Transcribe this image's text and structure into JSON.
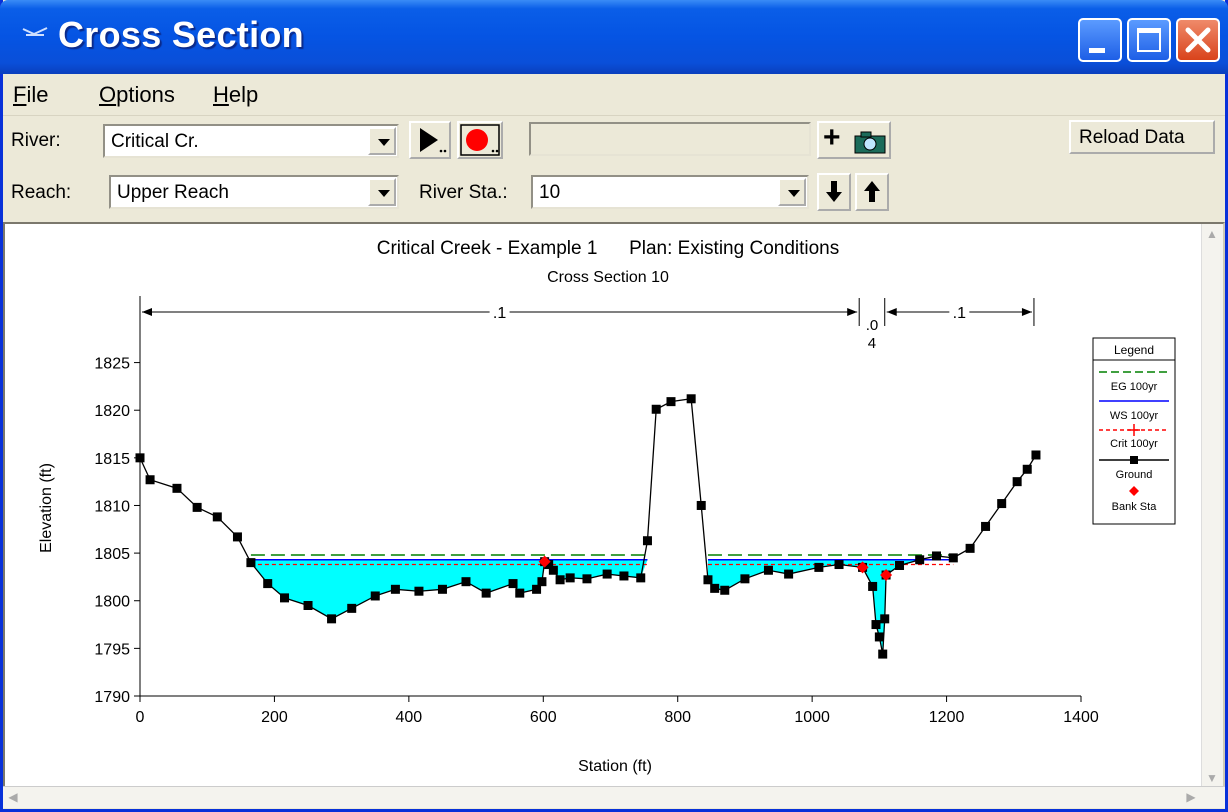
{
  "window": {
    "title": "Cross Section",
    "icon": "hec-ras-icon",
    "controls": [
      "minimize-icon",
      "maximize-icon",
      "close-icon"
    ]
  },
  "menu": {
    "file": "ile",
    "file_u": "F",
    "options": "ptions",
    "options_u": "O",
    "help": "elp",
    "help_u": "H"
  },
  "toolbar": {
    "river_label": "River:",
    "river_value": "Critical Cr.",
    "reach_label": "Reach:",
    "reach_value": "Upper Reach",
    "station_label": "River Sta.:",
    "station_value": "10",
    "play_icon": "play-icon",
    "record_icon": "record-icon",
    "add_label": "+",
    "camera_icon": "camera-icon",
    "down_icon": "arrow-down-icon",
    "up_icon": "arrow-up-icon",
    "reload_label": "Reload Data",
    "status_box": ""
  },
  "chart_data": {
    "type": "line",
    "title": "Critical Creek - Example 1      Plan: Existing Conditions",
    "subtitle": "Cross Section 10",
    "xlabel": "Station (ft)",
    "ylabel": "Elevation (ft)",
    "xlim": [
      0,
      1400
    ],
    "ylim": [
      1790,
      1828
    ],
    "xticks": [
      "0",
      "200",
      "400",
      "600",
      "800",
      "1000",
      "1200",
      "1400"
    ],
    "yticks": [
      "1790",
      "1795",
      "1800",
      "1805",
      "1810",
      "1815",
      "1820",
      "1825"
    ],
    "manning": [
      {
        "label": ".1",
        "from": 0,
        "to": 1070
      },
      {
        "label": ".0",
        "label2": "4",
        "from": 1070,
        "to": 1108
      },
      {
        "label": ".1",
        "from": 1108,
        "to": 1330
      }
    ],
    "legend": {
      "title": "Legend",
      "entries": [
        {
          "name": "EG 100yr",
          "color": "#008000",
          "style": "dash"
        },
        {
          "name": "WS 100yr",
          "color": "#0000ff",
          "style": "solid"
        },
        {
          "name": "Crit 100yr",
          "color": "#ff0000",
          "style": "dash-marker"
        },
        {
          "name": "Ground",
          "color": "#000000",
          "style": "solid-square"
        },
        {
          "name": "Bank Sta",
          "color": "#ff0000",
          "style": "diamond"
        }
      ]
    },
    "ground": [
      [
        0,
        1815
      ],
      [
        15,
        1812.7
      ],
      [
        55,
        1811.8
      ],
      [
        85,
        1809.8
      ],
      [
        115,
        1808.8
      ],
      [
        145,
        1806.7
      ],
      [
        165,
        1804
      ],
      [
        190,
        1801.8
      ],
      [
        215,
        1800.3
      ],
      [
        250,
        1799.5
      ],
      [
        285,
        1798.1
      ],
      [
        315,
        1799.2
      ],
      [
        350,
        1800.5
      ],
      [
        380,
        1801.2
      ],
      [
        415,
        1801
      ],
      [
        450,
        1801.2
      ],
      [
        485,
        1802
      ],
      [
        515,
        1800.8
      ],
      [
        555,
        1801.8
      ],
      [
        565,
        1800.8
      ],
      [
        590,
        1801.2
      ],
      [
        598,
        1802
      ],
      [
        602,
        1804.1
      ],
      [
        608,
        1803.8
      ],
      [
        615,
        1803.2
      ],
      [
        625,
        1802.2
      ],
      [
        640,
        1802.4
      ],
      [
        665,
        1802.3
      ],
      [
        695,
        1802.8
      ],
      [
        720,
        1802.6
      ],
      [
        745,
        1802.4
      ],
      [
        755,
        1806.3
      ],
      [
        768,
        1820.1
      ],
      [
        790,
        1820.9
      ],
      [
        820,
        1821.2
      ],
      [
        835,
        1810
      ],
      [
        845,
        1802.2
      ],
      [
        855,
        1801.3
      ],
      [
        870,
        1801.1
      ],
      [
        900,
        1802.3
      ],
      [
        935,
        1803.2
      ],
      [
        965,
        1802.8
      ],
      [
        1010,
        1803.5
      ],
      [
        1040,
        1803.8
      ],
      [
        1075,
        1803.5
      ],
      [
        1090,
        1801.5
      ],
      [
        1095,
        1797.5
      ],
      [
        1100,
        1796.2
      ],
      [
        1105,
        1794.4
      ],
      [
        1108,
        1798.1
      ],
      [
        1110,
        1802.7
      ],
      [
        1130,
        1803.7
      ],
      [
        1160,
        1804.3
      ],
      [
        1185,
        1804.7
      ],
      [
        1210,
        1804.5
      ],
      [
        1235,
        1805.5
      ],
      [
        1258,
        1807.8
      ],
      [
        1282,
        1810.2
      ],
      [
        1305,
        1812.5
      ],
      [
        1320,
        1813.8
      ],
      [
        1333,
        1815.3
      ]
    ],
    "bank_stations": [
      [
        602,
        1804.1
      ],
      [
        1075,
        1803.5
      ],
      [
        1110,
        1802.7
      ]
    ],
    "eg_elevation": 1804.8,
    "ws_elevation": 1804.3,
    "crit_elevation": 1803.8,
    "water_segments": [
      [
        165,
        755
      ],
      [
        845,
        1210
      ]
    ]
  }
}
